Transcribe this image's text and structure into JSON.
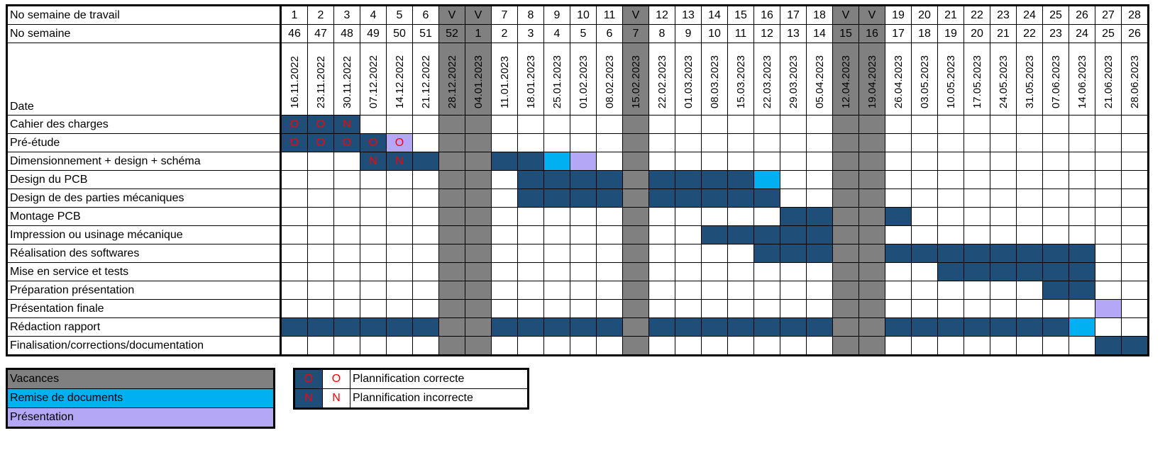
{
  "chart_data": {
    "type": "table",
    "header_labels": {
      "work_week": "No semaine de travail",
      "week": "No semaine",
      "date": "Date"
    },
    "columns": [
      {
        "wk": "1",
        "cw": "46",
        "date": "16.11.2022",
        "holiday": false
      },
      {
        "wk": "2",
        "cw": "47",
        "date": "23.11.2022",
        "holiday": false
      },
      {
        "wk": "3",
        "cw": "48",
        "date": "30.11.2022",
        "holiday": false
      },
      {
        "wk": "4",
        "cw": "49",
        "date": "07.12.2022",
        "holiday": false
      },
      {
        "wk": "5",
        "cw": "50",
        "date": "14.12.2022",
        "holiday": false
      },
      {
        "wk": "6",
        "cw": "51",
        "date": "21.12.2022",
        "holiday": false
      },
      {
        "wk": "V",
        "cw": "52",
        "date": "28.12.2022",
        "holiday": true
      },
      {
        "wk": "V",
        "cw": "1",
        "date": "04.01.2023",
        "holiday": true
      },
      {
        "wk": "7",
        "cw": "2",
        "date": "11.01.2023",
        "holiday": false
      },
      {
        "wk": "8",
        "cw": "3",
        "date": "18.01.2023",
        "holiday": false
      },
      {
        "wk": "9",
        "cw": "4",
        "date": "25.01.2023",
        "holiday": false
      },
      {
        "wk": "10",
        "cw": "5",
        "date": "01.02.2023",
        "holiday": false
      },
      {
        "wk": "11",
        "cw": "6",
        "date": "08.02.2023",
        "holiday": false
      },
      {
        "wk": "V",
        "cw": "7",
        "date": "15.02.2023",
        "holiday": true
      },
      {
        "wk": "12",
        "cw": "8",
        "date": "22.02.2023",
        "holiday": false
      },
      {
        "wk": "13",
        "cw": "9",
        "date": "01.03.2023",
        "holiday": false
      },
      {
        "wk": "14",
        "cw": "10",
        "date": "08.03.2023",
        "holiday": false
      },
      {
        "wk": "15",
        "cw": "11",
        "date": "15.03.2023",
        "holiday": false
      },
      {
        "wk": "16",
        "cw": "12",
        "date": "22.03.2023",
        "holiday": false
      },
      {
        "wk": "17",
        "cw": "13",
        "date": "29.03.2023",
        "holiday": false
      },
      {
        "wk": "18",
        "cw": "14",
        "date": "05.04.2023",
        "holiday": false
      },
      {
        "wk": "V",
        "cw": "15",
        "date": "12.04.2023",
        "holiday": true
      },
      {
        "wk": "V",
        "cw": "16",
        "date": "19.04.2023",
        "holiday": true
      },
      {
        "wk": "19",
        "cw": "17",
        "date": "26.04.2023",
        "holiday": false
      },
      {
        "wk": "20",
        "cw": "18",
        "date": "03.05.2023",
        "holiday": false
      },
      {
        "wk": "21",
        "cw": "19",
        "date": "10.05.2023",
        "holiday": false
      },
      {
        "wk": "22",
        "cw": "20",
        "date": "17.05.2023",
        "holiday": false
      },
      {
        "wk": "23",
        "cw": "21",
        "date": "24.05.2023",
        "holiday": false
      },
      {
        "wk": "24",
        "cw": "22",
        "date": "31.05.2023",
        "holiday": false
      },
      {
        "wk": "25",
        "cw": "23",
        "date": "07.06.2023",
        "holiday": false
      },
      {
        "wk": "26",
        "cw": "24",
        "date": "14.06.2023",
        "holiday": false
      },
      {
        "wk": "27",
        "cw": "25",
        "date": "21.06.2023",
        "holiday": false
      },
      {
        "wk": "28",
        "cw": "26",
        "date": "28.06.2023",
        "holiday": false
      }
    ],
    "tasks": [
      {
        "name": "Cahier des charges",
        "cells": "WWW..............................",
        "marks": {
          "0": "O",
          "1": "O",
          "2": "N"
        }
      },
      {
        "name": "Pré-étude",
        "cells": "WWWWP............................",
        "marks": {
          "0": "O",
          "1": "O",
          "2": "O",
          "3": "O",
          "4": "O"
        }
      },
      {
        "name": "Dimensionnement + design + schéma",
        "cells": "...WWW..WWDP.....................",
        "marks": {
          "3": "N",
          "4": "N"
        }
      },
      {
        "name": "Design du PCB",
        "cells": ".........WWWW.WWWWD..............",
        "marks": {}
      },
      {
        "name": "Design de des parties mécaniques",
        "cells": ".........WWWW.WWWWW..............",
        "marks": {}
      },
      {
        "name": "Montage PCB",
        "cells": "...................WW..W.........",
        "marks": {}
      },
      {
        "name": "Impression ou usinage mécanique",
        "cells": "................WWWWW............",
        "marks": {}
      },
      {
        "name": "Réalisation des softwares",
        "cells": "..................WWW..WWWWWWWW..",
        "marks": {}
      },
      {
        "name": "Mise en service et tests",
        "cells": ".........................WWWWWW..",
        "marks": {}
      },
      {
        "name": "Préparation présentation",
        "cells": ".............................WW..",
        "marks": {}
      },
      {
        "name": "Présentation finale",
        "cells": "...............................P.",
        "marks": {}
      },
      {
        "name": "Rédaction rapport",
        "cells": "WWWWWW..WWWWW.WWWWWWW..WWWWWWWD..",
        "marks": {}
      },
      {
        "name": "Finalisation/corrections/documentation",
        "cells": "...............................WW",
        "marks": {}
      }
    ],
    "colors": {
      "holiday": "#808080",
      "work": "#1f4e79",
      "document": "#00b0f0",
      "presentation": "#b4a7f5",
      "mark": "#ff0000"
    }
  },
  "legend": {
    "categories": [
      "Vacances",
      "Remise de documents",
      "Présentation"
    ],
    "status_rows": [
      {
        "mark": "O",
        "label": "Plannification correcte"
      },
      {
        "mark": "N",
        "label": "Plannification incorrecte"
      }
    ]
  }
}
